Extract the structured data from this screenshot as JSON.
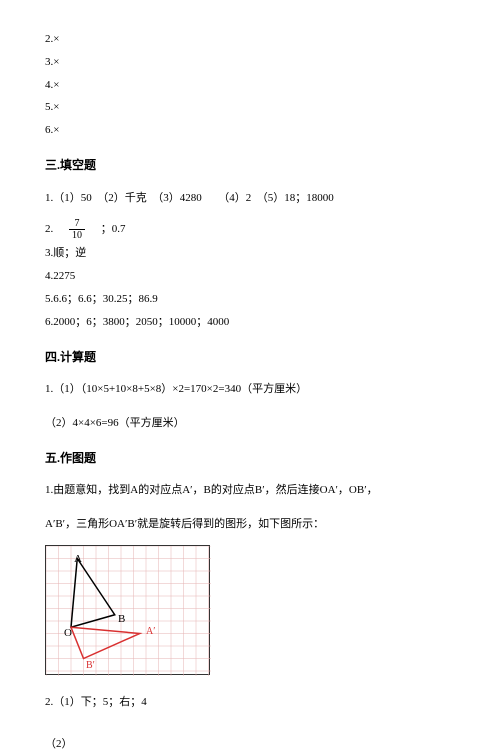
{
  "intro_lines": [
    "2.×",
    "3.×",
    "4.×",
    "5.×",
    "6.×"
  ],
  "section3": {
    "heading": "三.填空题",
    "item1": "1.（1）50　（2）千克　（3）4280　　（4）2　（5）18；18000",
    "item2_prefix": "2.　",
    "item2_frac_num": "7",
    "item2_frac_den": "10",
    "item2_suffix": "　；0.7",
    "item3": "3.顺；逆",
    "item4": "4.2275",
    "item5": "5.6.6；6.6；30.25；86.9",
    "item6": "6.2000；6；3800；2050；10000；4000"
  },
  "section4": {
    "heading": "四.计算题",
    "item1": "1.（1）（10×5+10×8+5×8）×2=170×2=340（平方厘米）",
    "item2": "（2）4×4×6=96（平方厘米）"
  },
  "section5": {
    "heading": "五.作图题",
    "item1_line1": "1.由题意知，找到A的对应点A′，B的对应点B′，然后连接OA′，OB′，",
    "item1_line2": "A′B′，三角形OA′B′就是旋转后得到的图形，如下图所示：",
    "item2_line1": "2.（1）下；5；右；4",
    "item2_line2": "（2）"
  },
  "diagram": {
    "grid_color": "#e6b3b3",
    "stroke_black": "#000000",
    "stroke_red": "#d93030",
    "labels": {
      "A": "A",
      "B": "B",
      "O": "O",
      "Ap": "A′",
      "Bp": "B′"
    }
  }
}
